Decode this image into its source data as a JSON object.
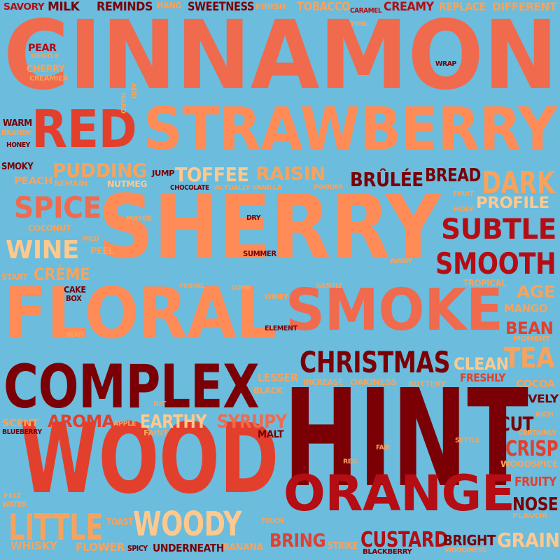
{
  "palette": {
    "background": "#6bbcdd",
    "colors": [
      "#f06a4e",
      "#ff8b57",
      "#e33f2d",
      "#b40d13",
      "#7a0006",
      "#ffc98e",
      "#f7a35d"
    ]
  },
  "words": [
    {
      "text": "CINNAMON",
      "c": 0
    },
    {
      "text": "SHERRY",
      "c": 1
    },
    {
      "text": "HINT",
      "c": 4
    },
    {
      "text": "WOOD",
      "c": 2
    },
    {
      "text": "STRAWBERRY",
      "c": 1
    },
    {
      "text": "FLORAL",
      "c": 1
    },
    {
      "text": "SMOKE",
      "c": 0
    },
    {
      "text": "COMPLEX",
      "c": 4
    },
    {
      "text": "RED",
      "c": 2
    },
    {
      "text": "ORANGE",
      "c": 3
    },
    {
      "text": "SUBTLE",
      "c": 3
    },
    {
      "text": "SMOOTH",
      "c": 3
    },
    {
      "text": "CHRISTMAS",
      "c": 4
    },
    {
      "text": "WOODY",
      "c": 5
    },
    {
      "text": "LITTLE",
      "c": 6
    },
    {
      "text": "SPICE",
      "c": 0
    },
    {
      "text": "WINE",
      "c": 5
    },
    {
      "text": "TOFFEE",
      "c": 5
    },
    {
      "text": "PUDDING",
      "c": 6
    },
    {
      "text": "RAISIN",
      "c": 6
    },
    {
      "text": "BRÛLÉE",
      "c": 4
    },
    {
      "text": "BREAD",
      "c": 4
    },
    {
      "text": "DARK",
      "c": 6
    },
    {
      "text": "PROFILE",
      "c": 5
    },
    {
      "text": "AGE",
      "c": 6
    },
    {
      "text": "BEAN",
      "c": 2
    },
    {
      "text": "TEA",
      "c": 6
    },
    {
      "text": "CLEAN",
      "c": 5
    },
    {
      "text": "CRÈME",
      "c": 6
    },
    {
      "text": "AROMA",
      "c": 2
    },
    {
      "text": "EARTHY",
      "c": 5
    },
    {
      "text": "SYRUPY",
      "c": 0
    },
    {
      "text": "CUT",
      "c": 4
    },
    {
      "text": "CRISP",
      "c": 2
    },
    {
      "text": "FRUITY",
      "c": 2
    },
    {
      "text": "NOSE",
      "c": 4
    },
    {
      "text": "GRAIN",
      "c": 5
    },
    {
      "text": "CUSTARD",
      "c": 3
    },
    {
      "text": "BRIGHT",
      "c": 4
    },
    {
      "text": "BRING",
      "c": 2
    },
    {
      "text": "LIVELY",
      "c": 4
    },
    {
      "text": "FRESHLY",
      "c": 2
    },
    {
      "text": "SWEETNESS",
      "c": 4
    },
    {
      "text": "CREAMY",
      "c": 3
    },
    {
      "text": "REMINDS",
      "c": 4
    },
    {
      "text": "MILK",
      "c": 4
    },
    {
      "text": "TOBACCO",
      "c": 6
    },
    {
      "text": "REPLACE",
      "c": 6
    },
    {
      "text": "DIFFERENT",
      "c": 6
    },
    {
      "text": "SAVORY",
      "c": 3
    },
    {
      "text": "HANG",
      "c": 6
    },
    {
      "text": "FINISH",
      "c": 6
    },
    {
      "text": "CARAMEL",
      "c": 3
    },
    {
      "text": "TIME",
      "c": 6
    },
    {
      "text": "PEAR",
      "c": 3
    },
    {
      "text": "GENTLE",
      "c": 6
    },
    {
      "text": "CHERRY",
      "c": 6
    },
    {
      "text": "CREAMIER",
      "c": 6
    },
    {
      "text": "WRAP",
      "c": 4
    },
    {
      "text": "WARM",
      "c": 4
    },
    {
      "text": "BRANDY",
      "c": 6
    },
    {
      "text": "HONEY",
      "c": 4
    },
    {
      "text": "SMOKY",
      "c": 4
    },
    {
      "text": "PEACH",
      "c": 6
    },
    {
      "text": "REMAIN",
      "c": 6
    },
    {
      "text": "NUTMEG",
      "c": 5
    },
    {
      "text": "JUMP",
      "c": 4
    },
    {
      "text": "CHOCOLATE",
      "c": 4
    },
    {
      "text": "ACTUALLY VANILLA",
      "c": 6
    },
    {
      "text": "POWDER",
      "c": 6
    },
    {
      "text": "FRUIT",
      "c": 6
    },
    {
      "text": "HOLY",
      "c": 6
    },
    {
      "text": "COCONUT",
      "c": 6
    },
    {
      "text": "MAYBE",
      "c": 6
    },
    {
      "text": "DRY",
      "c": 4
    },
    {
      "text": "MILD",
      "c": 6
    },
    {
      "text": "PEEL",
      "c": 6
    },
    {
      "text": "SUMMER",
      "c": 4
    },
    {
      "text": "AWAY",
      "c": 6
    },
    {
      "text": "START",
      "c": 6
    },
    {
      "text": "CAKE",
      "c": 4
    },
    {
      "text": "BOX",
      "c": 4
    },
    {
      "text": "FENNEL",
      "c": 6
    },
    {
      "text": "COME",
      "c": 6
    },
    {
      "text": "GENTLY",
      "c": 6
    },
    {
      "text": "TROPICAL",
      "c": 6
    },
    {
      "text": "WINEY",
      "c": 6
    },
    {
      "text": "MANGO",
      "c": 6
    },
    {
      "text": "ELEMENT",
      "c": 4
    },
    {
      "text": "HEAD",
      "c": 6
    },
    {
      "text": "MOMENT",
      "c": 6
    },
    {
      "text": "LESSER",
      "c": 6
    },
    {
      "text": "INCREASE",
      "c": 6
    },
    {
      "text": "OAKINESS",
      "c": 6
    },
    {
      "text": "BUTTERY",
      "c": 6
    },
    {
      "text": "BLACK",
      "c": 6
    },
    {
      "text": "COCOA",
      "c": 6
    },
    {
      "text": "RICH",
      "c": 6
    },
    {
      "text": "CERTAINLY",
      "c": 6
    },
    {
      "text": "BIT",
      "c": 6
    },
    {
      "text": "SCENT",
      "c": 6
    },
    {
      "text": "APPLE",
      "c": 6
    },
    {
      "text": "BLUEBERRY",
      "c": 4
    },
    {
      "text": "FAINT",
      "c": 6
    },
    {
      "text": "MALT",
      "c": 4
    },
    {
      "text": "SETTLE",
      "c": 6
    },
    {
      "text": "FAIR",
      "c": 6
    },
    {
      "text": "RED",
      "c": 6
    },
    {
      "text": "WOODSPICE",
      "c": 6
    },
    {
      "text": "FELT",
      "c": 6
    },
    {
      "text": "WATER",
      "c": 6
    },
    {
      "text": "TOAST",
      "c": 6
    },
    {
      "text": "TOUCH",
      "c": 6
    },
    {
      "text": "FLAVOR",
      "c": 6
    },
    {
      "text": "WHISKY",
      "c": 6
    },
    {
      "text": "FLOWER",
      "c": 6
    },
    {
      "text": "SPICY",
      "c": 4
    },
    {
      "text": "UNDERNEATH",
      "c": 4
    },
    {
      "text": "BANANA",
      "c": 6
    },
    {
      "text": "STRIKE",
      "c": 6
    },
    {
      "text": "BLACKBERRY",
      "c": 4
    },
    {
      "text": "WOODINESS",
      "c": 6
    },
    {
      "text": "HARD",
      "c": 6
    },
    {
      "text": "ADD",
      "c": 6
    }
  ]
}
